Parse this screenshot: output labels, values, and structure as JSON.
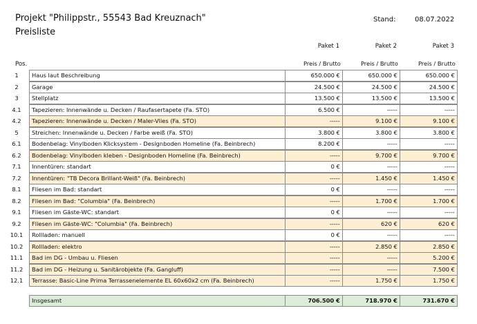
{
  "header": {
    "title": "Projekt \"Philippstr., 55543 Bad Kreuznach\"",
    "subtitle": "Preisliste",
    "date_label": "Stand:",
    "date": "08.07.2022"
  },
  "table": {
    "packages": [
      "Paket 1",
      "Paket 2",
      "Paket 3"
    ],
    "pos_header": "Pos.",
    "price_header": "Preis / Brutto",
    "rows": [
      {
        "pos": "1",
        "description": "Haus laut Beschreibung",
        "values": [
          "650.000 €",
          "650.000 €",
          "650.000 €"
        ]
      },
      {
        "pos": "2",
        "description": "Garage",
        "values": [
          "24.500 €",
          "24.500 €",
          "24.500 €"
        ]
      },
      {
        "pos": "3",
        "description": "Stellplatz",
        "values": [
          "13.500 €",
          "13.500 €",
          "13.500 €"
        ]
      },
      {
        "pos": "4.1",
        "description": "Tapezieren: Innenwände u. Decken / Raufasertapete (Fa. STO)",
        "values": [
          "6.500 €",
          "-----",
          "-----"
        ]
      },
      {
        "pos": "4.2",
        "description": "Tapezieren: Innenwände u. Decken  / Maler-Vlies (Fa. STO)",
        "values": [
          "-----",
          "9.100 €",
          "9.100 €"
        ],
        "highlighted": true
      },
      {
        "pos": "5",
        "description": "Streichen: Innenwände u. Decken / Farbe weiß (Fa. STO)",
        "values": [
          "3.800 €",
          "3.800 €",
          "3.800 €"
        ]
      },
      {
        "pos": "6.1",
        "description": "Bodenbelag: Vinylboden Klicksystem - Designboden Homeline (Fa. Beinbrech)",
        "values": [
          "8.200 €",
          "-----",
          "-----"
        ]
      },
      {
        "pos": "6.2",
        "description": "Bodenbelag: Vinylboden kleben - Designboden Homeline (Fa. Beinbrech)",
        "values": [
          "-----",
          "9.700 €",
          "9.700 €"
        ],
        "highlighted": true
      },
      {
        "pos": "7.1",
        "description": "Innentüren: standart",
        "values": [
          "0 €",
          "-----",
          "-----"
        ]
      },
      {
        "pos": "7.2",
        "description": "Innentüren: \"TB Decora Brillant-Weiß\" (Fa. Beinbrech)",
        "values": [
          "-----",
          "1.450 €",
          "1.450 €"
        ],
        "highlighted": true
      },
      {
        "pos": "8.1",
        "description": "Fliesen im Bad: standart",
        "values": [
          "0 €",
          "-----",
          "-----"
        ]
      },
      {
        "pos": "8.2",
        "description": "Fliesen im Bad: \"Columbia\" (Fa. Beinbrech)",
        "values": [
          "-----",
          "1.700 €",
          "1.700 €"
        ],
        "highlighted": true
      },
      {
        "pos": "9.1",
        "description": "Fliesen im Gäste-WC: standart",
        "values": [
          "0 €",
          "-----",
          "-----"
        ]
      },
      {
        "pos": "9.2",
        "description": "Fliesen im Gäste-WC: \"Columbia\" (Fa. Beinbrech)",
        "values": [
          "-----",
          "620 €",
          "620 €"
        ],
        "highlighted": true
      },
      {
        "pos": "10.1",
        "description": "Rollladen: manuell",
        "values": [
          "0 €",
          "-----",
          "-----"
        ]
      },
      {
        "pos": "10.2",
        "description": "Rollladen: elektro",
        "values": [
          "-----",
          "2.850 €",
          "2.850 €"
        ],
        "highlighted": true
      },
      {
        "pos": "11.1",
        "description": "Bad im DG  - Umbau u. Fliesen",
        "values": [
          "-----",
          "-----",
          "5.200 €"
        ],
        "highlighted": true
      },
      {
        "pos": "11.2",
        "description": "Bad im DG  - Heizung u. Sanitärobjekte (Fa. Gangluff)",
        "values": [
          "-----",
          "-----",
          "7.500 €"
        ],
        "highlighted": true
      },
      {
        "pos": "12.1",
        "description": "Terrasse: Basic-Line Prima Terrassenelemente EL 60x60x2 cm (Fa. Beinbrech)",
        "values": [
          "-----",
          "1.750 €",
          "1.750 €"
        ],
        "highlighted": true
      }
    ],
    "total": {
      "label": "Insgesamt",
      "values": [
        "706.500 €",
        "718.970 €",
        "731.670 €"
      ]
    }
  }
}
